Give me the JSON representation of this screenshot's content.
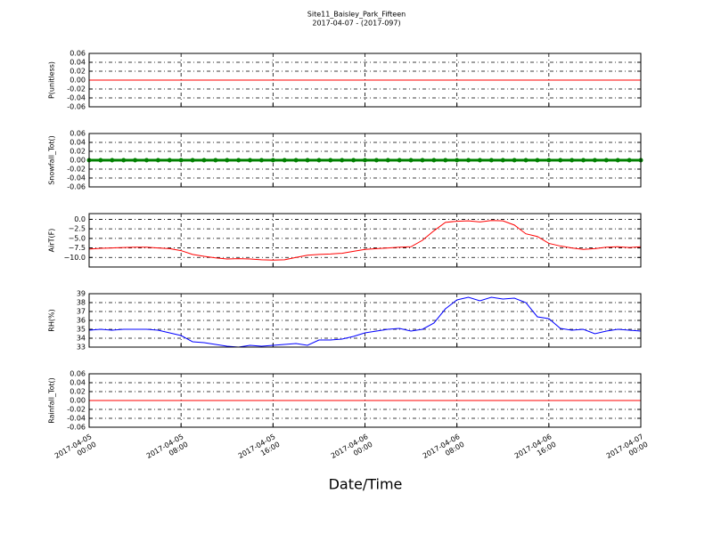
{
  "chart_data": [
    {
      "type": "line",
      "title": "Site11_Baisley_Park_Fifteen",
      "subtitle": "2017-04-07 - (2017-097)",
      "ylabel": "P(unitless)",
      "grid": true,
      "xlim": [
        "2017-04-05 00:00",
        "2017-04-07 00:00"
      ],
      "ylim": [
        -0.06,
        0.06
      ],
      "yticks": [
        -0.06,
        -0.04,
        -0.02,
        {
          "value": 0,
          "label": "0.00"
        },
        0.02,
        0.04,
        0.06
      ],
      "x": [
        "2017-04-05 00:00",
        "2017-04-05 01:00",
        "2017-04-05 02:00",
        "2017-04-05 03:00",
        "2017-04-05 04:00",
        "2017-04-05 05:00",
        "2017-04-05 06:00",
        "2017-04-05 07:00",
        "2017-04-05 08:00",
        "2017-04-05 09:00",
        "2017-04-05 10:00",
        "2017-04-05 11:00",
        "2017-04-05 12:00",
        "2017-04-05 13:00",
        "2017-04-05 14:00",
        "2017-04-05 15:00",
        "2017-04-05 16:00",
        "2017-04-05 17:00",
        "2017-04-05 18:00",
        "2017-04-05 19:00",
        "2017-04-05 20:00",
        "2017-04-05 21:00",
        "2017-04-05 22:00",
        "2017-04-05 23:00",
        "2017-04-06 00:00",
        "2017-04-06 01:00",
        "2017-04-06 02:00",
        "2017-04-06 03:00",
        "2017-04-06 04:00",
        "2017-04-06 05:00",
        "2017-04-06 06:00",
        "2017-04-06 07:00",
        "2017-04-06 08:00",
        "2017-04-06 09:00",
        "2017-04-06 10:00",
        "2017-04-06 11:00",
        "2017-04-06 12:00",
        "2017-04-06 13:00",
        "2017-04-06 14:00",
        "2017-04-06 15:00",
        "2017-04-06 16:00",
        "2017-04-06 17:00",
        "2017-04-06 18:00",
        "2017-04-06 19:00",
        "2017-04-06 20:00",
        "2017-04-06 21:00",
        "2017-04-06 22:00",
        "2017-04-06 23:00",
        "2017-04-07 00:00"
      ],
      "series": [
        {
          "color": "#ff0000",
          "values": [
            0,
            0,
            0,
            0,
            0,
            0,
            0,
            0,
            0,
            0,
            0,
            0,
            0,
            0,
            0,
            0,
            0,
            0,
            0,
            0,
            0,
            0,
            0,
            0,
            0,
            0,
            0,
            0,
            0,
            0,
            0,
            0,
            0,
            0,
            0,
            0,
            0,
            0,
            0,
            0,
            0,
            0,
            0,
            0,
            0,
            0,
            0,
            0,
            0
          ]
        }
      ]
    },
    {
      "type": "line",
      "ylabel": "Snowfall_Tot()",
      "grid": true,
      "marker": true,
      "xlim": [
        "2017-04-05 00:00",
        "2017-04-07 00:00"
      ],
      "ylim": [
        -0.06,
        0.06
      ],
      "yticks": [
        -0.06,
        -0.04,
        -0.02,
        {
          "value": 0,
          "label": "0.00"
        },
        0.02,
        0.04,
        0.06
      ],
      "x": [
        "2017-04-05 00:00",
        "2017-04-05 01:00",
        "2017-04-05 02:00",
        "2017-04-05 03:00",
        "2017-04-05 04:00",
        "2017-04-05 05:00",
        "2017-04-05 06:00",
        "2017-04-05 07:00",
        "2017-04-05 08:00",
        "2017-04-05 09:00",
        "2017-04-05 10:00",
        "2017-04-05 11:00",
        "2017-04-05 12:00",
        "2017-04-05 13:00",
        "2017-04-05 14:00",
        "2017-04-05 15:00",
        "2017-04-05 16:00",
        "2017-04-05 17:00",
        "2017-04-05 18:00",
        "2017-04-05 19:00",
        "2017-04-05 20:00",
        "2017-04-05 21:00",
        "2017-04-05 22:00",
        "2017-04-05 23:00",
        "2017-04-06 00:00",
        "2017-04-06 01:00",
        "2017-04-06 02:00",
        "2017-04-06 03:00",
        "2017-04-06 04:00",
        "2017-04-06 05:00",
        "2017-04-06 06:00",
        "2017-04-06 07:00",
        "2017-04-06 08:00",
        "2017-04-06 09:00",
        "2017-04-06 10:00",
        "2017-04-06 11:00",
        "2017-04-06 12:00",
        "2017-04-06 13:00",
        "2017-04-06 14:00",
        "2017-04-06 15:00",
        "2017-04-06 16:00",
        "2017-04-06 17:00",
        "2017-04-06 18:00",
        "2017-04-06 19:00",
        "2017-04-06 20:00",
        "2017-04-06 21:00",
        "2017-04-06 22:00",
        "2017-04-06 23:00",
        "2017-04-07 00:00"
      ],
      "series": [
        {
          "color": "#008000",
          "values": [
            0,
            0,
            0,
            0,
            0,
            0,
            0,
            0,
            0,
            0,
            0,
            0,
            0,
            0,
            0,
            0,
            0,
            0,
            0,
            0,
            0,
            0,
            0,
            0,
            0,
            0,
            0,
            0,
            0,
            0,
            0,
            0,
            0,
            0,
            0,
            0,
            0,
            0,
            0,
            0,
            0,
            0,
            0,
            0,
            0,
            0,
            0,
            0,
            0
          ]
        }
      ]
    },
    {
      "type": "line",
      "ylabel": "AirT(F)",
      "grid": true,
      "xlim": [
        "2017-04-05 00:00",
        "2017-04-07 00:00"
      ],
      "ylim": [
        -12.5,
        1.5
      ],
      "yticks": [
        {
          "value": -10,
          "label": "−10.0"
        },
        {
          "value": -7.5,
          "label": "−7.5"
        },
        {
          "value": -5,
          "label": "−5.0"
        },
        {
          "value": -2.5,
          "label": "−2.5"
        },
        {
          "value": 0,
          "label": "0.0"
        }
      ],
      "x": [
        "2017-04-05 00:00",
        "2017-04-05 01:00",
        "2017-04-05 02:00",
        "2017-04-05 03:00",
        "2017-04-05 04:00",
        "2017-04-05 05:00",
        "2017-04-05 06:00",
        "2017-04-05 07:00",
        "2017-04-05 08:00",
        "2017-04-05 09:00",
        "2017-04-05 10:00",
        "2017-04-05 11:00",
        "2017-04-05 12:00",
        "2017-04-05 13:00",
        "2017-04-05 14:00",
        "2017-04-05 15:00",
        "2017-04-05 16:00",
        "2017-04-05 17:00",
        "2017-04-05 18:00",
        "2017-04-05 19:00",
        "2017-04-05 20:00",
        "2017-04-05 21:00",
        "2017-04-05 22:00",
        "2017-04-05 23:00",
        "2017-04-06 00:00",
        "2017-04-06 01:00",
        "2017-04-06 02:00",
        "2017-04-06 03:00",
        "2017-04-06 04:00",
        "2017-04-06 05:00",
        "2017-04-06 06:00",
        "2017-04-06 07:00",
        "2017-04-06 08:00",
        "2017-04-06 09:00",
        "2017-04-06 10:00",
        "2017-04-06 11:00",
        "2017-04-06 12:00",
        "2017-04-06 13:00",
        "2017-04-06 14:00",
        "2017-04-06 15:00",
        "2017-04-06 16:00",
        "2017-04-06 17:00",
        "2017-04-06 18:00",
        "2017-04-06 19:00",
        "2017-04-06 20:00",
        "2017-04-06 21:00",
        "2017-04-06 22:00",
        "2017-04-06 23:00",
        "2017-04-07 00:00"
      ],
      "series": [
        {
          "color": "#ff0000",
          "values": [
            -7.8,
            -7.6,
            -7.5,
            -7.4,
            -7.3,
            -7.3,
            -7.5,
            -7.7,
            -8.2,
            -9.2,
            -9.7,
            -10.1,
            -10.4,
            -10.3,
            -10.4,
            -10.6,
            -10.7,
            -10.6,
            -10.0,
            -9.4,
            -9.2,
            -9.1,
            -8.9,
            -8.4,
            -7.9,
            -7.7,
            -7.5,
            -7.3,
            -7.2,
            -5.5,
            -3.0,
            -0.8,
            -0.5,
            -0.4,
            -0.7,
            -0.3,
            -0.4,
            -1.5,
            -3.8,
            -4.5,
            -6.3,
            -7.0,
            -7.5,
            -7.9,
            -7.7,
            -7.3,
            -7.2,
            -7.4,
            -7.2
          ]
        }
      ]
    },
    {
      "type": "line",
      "ylabel": "RH(%)",
      "grid": true,
      "xlim": [
        "2017-04-05 00:00",
        "2017-04-07 00:00"
      ],
      "ylim": [
        33,
        39
      ],
      "yticks": [
        33,
        34,
        35,
        36,
        37,
        38,
        39
      ],
      "x": [
        "2017-04-05 00:00",
        "2017-04-05 01:00",
        "2017-04-05 02:00",
        "2017-04-05 03:00",
        "2017-04-05 04:00",
        "2017-04-05 05:00",
        "2017-04-05 06:00",
        "2017-04-05 07:00",
        "2017-04-05 08:00",
        "2017-04-05 09:00",
        "2017-04-05 10:00",
        "2017-04-05 11:00",
        "2017-04-05 12:00",
        "2017-04-05 13:00",
        "2017-04-05 14:00",
        "2017-04-05 15:00",
        "2017-04-05 16:00",
        "2017-04-05 17:00",
        "2017-04-05 18:00",
        "2017-04-05 19:00",
        "2017-04-05 20:00",
        "2017-04-05 21:00",
        "2017-04-05 22:00",
        "2017-04-05 23:00",
        "2017-04-06 00:00",
        "2017-04-06 01:00",
        "2017-04-06 02:00",
        "2017-04-06 03:00",
        "2017-04-06 04:00",
        "2017-04-06 05:00",
        "2017-04-06 06:00",
        "2017-04-06 07:00",
        "2017-04-06 08:00",
        "2017-04-06 09:00",
        "2017-04-06 10:00",
        "2017-04-06 11:00",
        "2017-04-06 12:00",
        "2017-04-06 13:00",
        "2017-04-06 14:00",
        "2017-04-06 15:00",
        "2017-04-06 16:00",
        "2017-04-06 17:00",
        "2017-04-06 18:00",
        "2017-04-06 19:00",
        "2017-04-06 20:00",
        "2017-04-06 21:00",
        "2017-04-06 22:00",
        "2017-04-06 23:00",
        "2017-04-07 00:00"
      ],
      "series": [
        {
          "color": "#0000ff",
          "values": [
            34.9,
            35.0,
            34.9,
            35.0,
            35.0,
            35.0,
            34.9,
            34.6,
            34.3,
            33.6,
            33.5,
            33.3,
            33.1,
            33.0,
            33.2,
            33.1,
            33.2,
            33.3,
            33.4,
            33.2,
            33.8,
            33.8,
            33.9,
            34.2,
            34.6,
            34.8,
            35.0,
            35.1,
            34.8,
            35.0,
            35.7,
            37.3,
            38.3,
            38.6,
            38.2,
            38.6,
            38.4,
            38.5,
            38.0,
            36.4,
            36.2,
            35.1,
            34.9,
            35.0,
            34.5,
            34.8,
            35.0,
            34.9,
            34.8
          ]
        }
      ]
    },
    {
      "type": "line",
      "ylabel": "Rainfall_Tot()",
      "xlabel": "Date/Time",
      "grid": true,
      "xlim": [
        "2017-04-05 00:00",
        "2017-04-07 00:00"
      ],
      "xticks": [
        "2017-04-05 00:00",
        "2017-04-05 08:00",
        "2017-04-05 16:00",
        "2017-04-06 00:00",
        "2017-04-06 08:00",
        "2017-04-06 16:00",
        "2017-04-07 00:00"
      ],
      "ylim": [
        -0.06,
        0.06
      ],
      "yticks": [
        -0.06,
        -0.04,
        -0.02,
        {
          "value": 0,
          "label": "0.00"
        },
        0.02,
        0.04,
        0.06
      ],
      "x": [
        "2017-04-05 00:00",
        "2017-04-05 01:00",
        "2017-04-05 02:00",
        "2017-04-05 03:00",
        "2017-04-05 04:00",
        "2017-04-05 05:00",
        "2017-04-05 06:00",
        "2017-04-05 07:00",
        "2017-04-05 08:00",
        "2017-04-05 09:00",
        "2017-04-05 10:00",
        "2017-04-05 11:00",
        "2017-04-05 12:00",
        "2017-04-05 13:00",
        "2017-04-05 14:00",
        "2017-04-05 15:00",
        "2017-04-05 16:00",
        "2017-04-05 17:00",
        "2017-04-05 18:00",
        "2017-04-05 19:00",
        "2017-04-05 20:00",
        "2017-04-05 21:00",
        "2017-04-05 22:00",
        "2017-04-05 23:00",
        "2017-04-06 00:00",
        "2017-04-06 01:00",
        "2017-04-06 02:00",
        "2017-04-06 03:00",
        "2017-04-06 04:00",
        "2017-04-06 05:00",
        "2017-04-06 06:00",
        "2017-04-06 07:00",
        "2017-04-06 08:00",
        "2017-04-06 09:00",
        "2017-04-06 10:00",
        "2017-04-06 11:00",
        "2017-04-06 12:00",
        "2017-04-06 13:00",
        "2017-04-06 14:00",
        "2017-04-06 15:00",
        "2017-04-06 16:00",
        "2017-04-06 17:00",
        "2017-04-06 18:00",
        "2017-04-06 19:00",
        "2017-04-06 20:00",
        "2017-04-06 21:00",
        "2017-04-06 22:00",
        "2017-04-06 23:00",
        "2017-04-07 00:00"
      ],
      "series": [
        {
          "color": "#ff0000",
          "values": [
            0,
            0,
            0,
            0,
            0,
            0,
            0,
            0,
            0,
            0,
            0,
            0,
            0,
            0,
            0,
            0,
            0,
            0,
            0,
            0,
            0,
            0,
            0,
            0,
            0,
            0,
            0,
            0,
            0,
            0,
            0,
            0,
            0,
            0,
            0,
            0,
            0,
            0,
            0,
            0,
            0,
            0,
            0,
            0,
            0,
            0,
            0,
            0,
            0
          ]
        }
      ]
    }
  ]
}
